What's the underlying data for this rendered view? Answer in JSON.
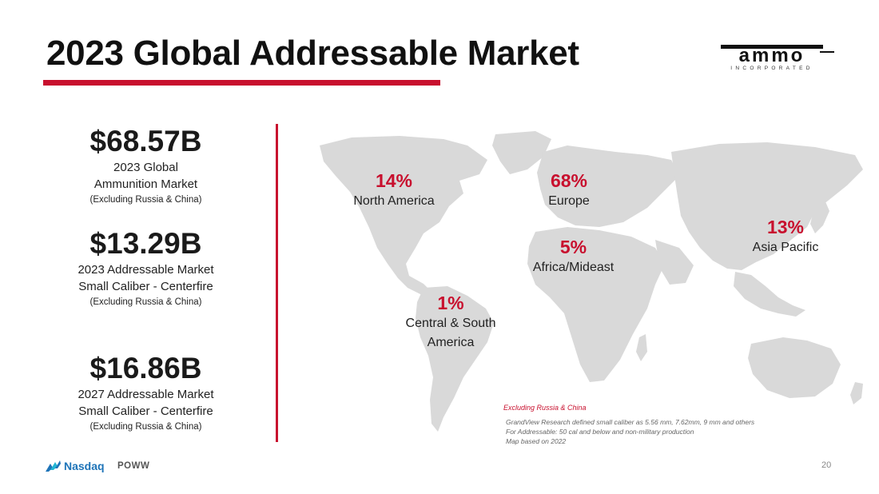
{
  "slide": {
    "title": "2023 Global Addressable Market",
    "page_number": "20"
  },
  "logo": {
    "word": "ammo",
    "tagline": "INCORPORATED"
  },
  "stats": [
    {
      "value": "$68.57B",
      "line1": "2023 Global",
      "line2": "Ammunition Market",
      "note": "(Excluding Russia & China)"
    },
    {
      "value": "$13.29B",
      "line1": "2023 Addressable Market",
      "line2": "Small Caliber - Centerfire",
      "note": "(Excluding Russia & China)"
    },
    {
      "value": "$16.86B",
      "line1": "2027 Addressable Market",
      "line2": "Small Caliber - Centerfire",
      "note": "(Excluding Russia & China)"
    }
  ],
  "regions": {
    "north_america": {
      "pct": "14%",
      "name": "North America"
    },
    "europe": {
      "pct": "68%",
      "name": "Europe"
    },
    "africa": {
      "pct": "5%",
      "name": "Africa/Mideast"
    },
    "asia": {
      "pct": "13%",
      "name": "Asia Pacific"
    },
    "south_america": {
      "pct": "1%",
      "name_line1": "Central & South",
      "name_line2": "America"
    }
  },
  "footnotes": {
    "heading": "Excluding Russia & China",
    "lines": [
      "GrandView Research defined small caliber as 5.56 mm, 7.62mm, 9 mm and others",
      "For Addressable: 50 cal and below and non-military production",
      "Map based on 2022"
    ]
  },
  "footer": {
    "exchange": "Nasdaq",
    "ticker": "POWW"
  },
  "colors": {
    "accent": "#c8102e",
    "map_fill": "#d9d9d9",
    "nasdaq_blue": "#1e74b8"
  }
}
